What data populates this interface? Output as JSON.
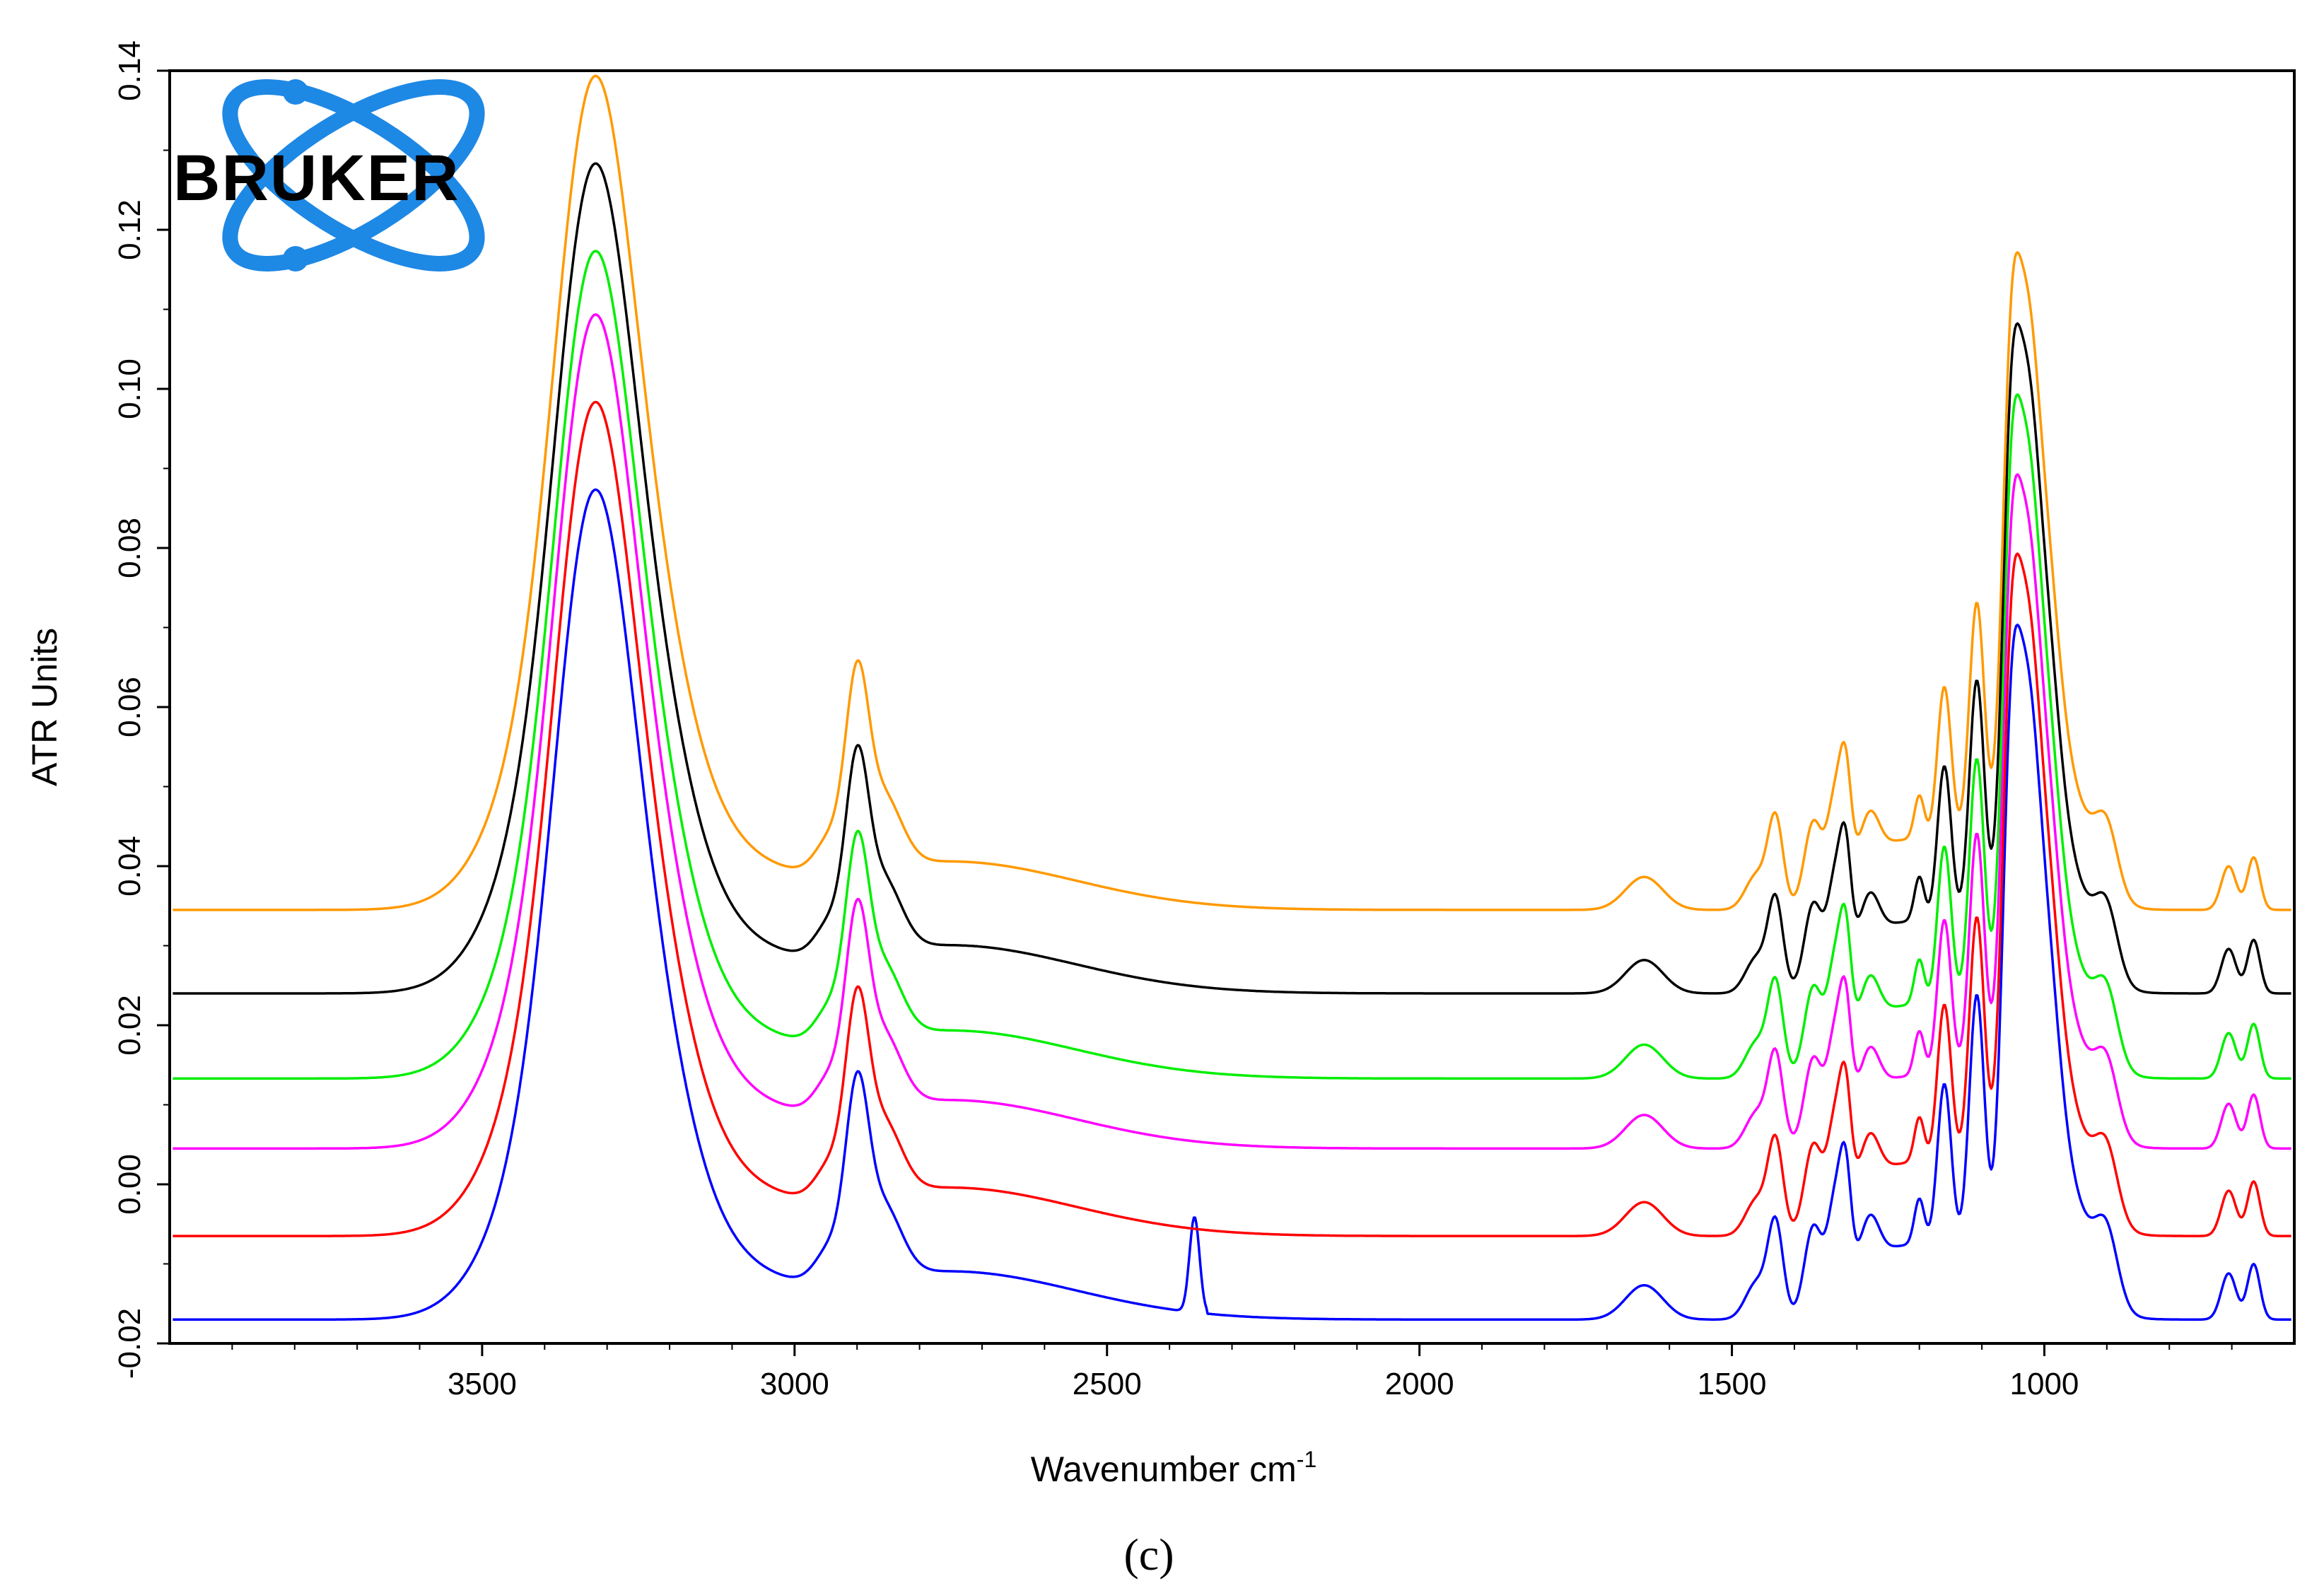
{
  "panel_label": "(c)",
  "logo": {
    "text": "BRUKER",
    "color": "#1e88e5"
  },
  "chart_data": {
    "type": "line",
    "xlabel": "Wavenumber cm",
    "xlabel_sup": "-1",
    "ylabel": "ATR Units",
    "xlim": [
      4000,
      600
    ],
    "ylim": [
      -0.02,
      0.14
    ],
    "x_reversed": true,
    "xticks": [
      3500,
      3000,
      2500,
      2000,
      1500,
      1000
    ],
    "yticks": [
      "-0.02",
      "0.00",
      "0.02",
      "0.04",
      "0.06",
      "0.08",
      "0.10",
      "0.12",
      "0.14"
    ],
    "grid": false,
    "legend": "none",
    "series": [
      {
        "color": "#0000ff",
        "baseline": -0.017,
        "peak_3330": 0.086,
        "peak_1030": 0.067
      },
      {
        "color": "#ff0000",
        "baseline": -0.0065,
        "peak_3330": 0.097,
        "peak_1030": 0.076
      },
      {
        "color": "#ff00ff",
        "baseline": 0.0045,
        "peak_3330": 0.108,
        "peak_1030": 0.086
      },
      {
        "color": "#00ee00",
        "baseline": 0.0133,
        "peak_3330": 0.116,
        "peak_1030": 0.096
      },
      {
        "color": "#000000",
        "baseline": 0.024,
        "peak_3330": 0.127,
        "peak_1030": 0.105
      },
      {
        "color": "#ff9900",
        "baseline": 0.0345,
        "peak_3330": 0.138,
        "peak_1030": 0.114
      }
    ]
  }
}
